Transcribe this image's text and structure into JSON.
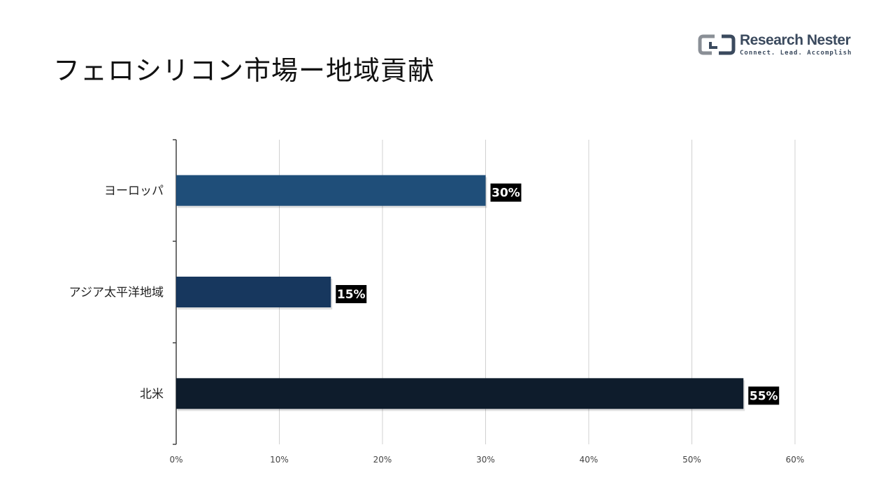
{
  "title": "フェロシリコン市場ー地域貢献",
  "logo": {
    "name": "Research Nester",
    "tagline": "Connect. Lead. Accomplish",
    "icon": "research-nester-logo-icon"
  },
  "colors": {
    "bars": [
      "#1f4e79",
      "#17375e",
      "#0e1c2c"
    ],
    "label_bg": "#000000",
    "grid": "#d0d0d0",
    "axis": "#404040"
  },
  "chart_data": {
    "type": "bar",
    "orientation": "horizontal",
    "categories": [
      "ヨーロッパ",
      "アジア太平洋地域",
      "北米"
    ],
    "values": [
      30,
      15,
      55
    ],
    "data_labels": [
      "30%",
      "15%",
      "55%"
    ],
    "xlim": [
      0,
      60
    ],
    "xticks": [
      0,
      10,
      20,
      30,
      40,
      50,
      60
    ],
    "xtick_labels": [
      "0%",
      "10%",
      "20%",
      "30%",
      "40%",
      "50%",
      "60%"
    ],
    "grid": true,
    "legend": "none"
  }
}
